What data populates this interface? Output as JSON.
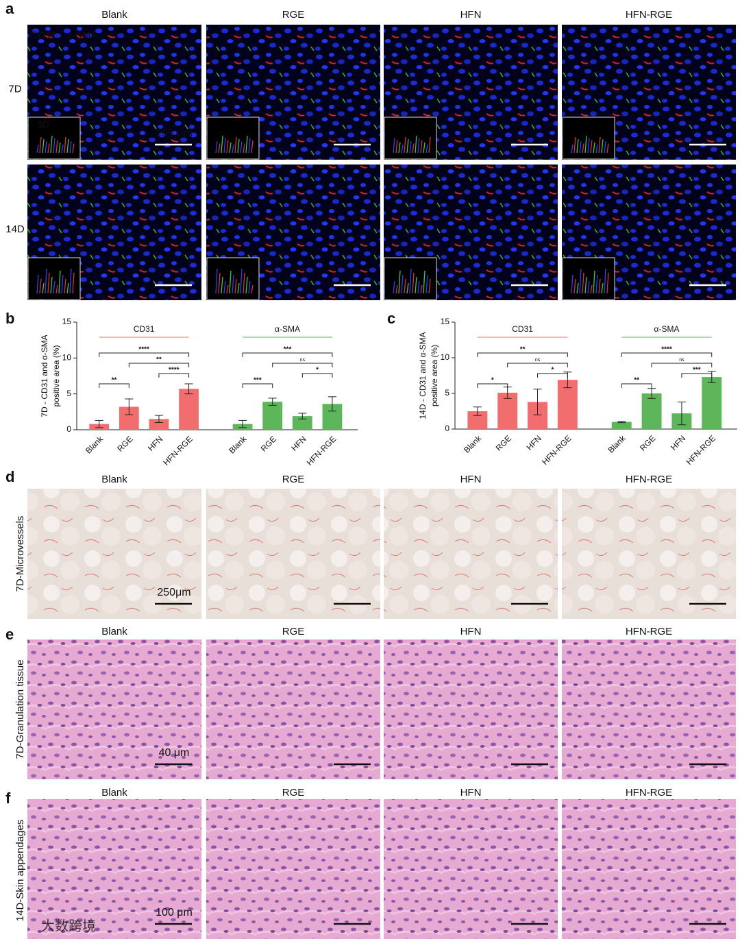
{
  "panels": {
    "a": {
      "label": "a",
      "columns": [
        "Blank",
        "RGE",
        "HFN",
        "HFN-RGE"
      ],
      "rows": [
        "7D",
        "14D"
      ],
      "legend": [
        "CD31",
        "α-SMA"
      ],
      "inset": "3D",
      "scale": "100 μm"
    },
    "d": {
      "label": "d",
      "columns": [
        "Blank",
        "RGE",
        "HFN",
        "HFN-RGE"
      ],
      "row": "7D-Microvessels",
      "scale": "250μm"
    },
    "e": {
      "label": "e",
      "columns": [
        "Blank",
        "RGE",
        "HFN",
        "HFN-RGE"
      ],
      "row": "7D-Granulation tissue",
      "scale": "40 μm"
    },
    "f": {
      "label": "f",
      "columns": [
        "Blank",
        "RGE",
        "HFN",
        "HFN-RGE"
      ],
      "row": "14D-Skin appendages",
      "scale": "100 μm"
    }
  },
  "watermark": "大数跨境",
  "chart_data": [
    {
      "type": "bar",
      "label": "b",
      "ylabel": [
        "7D - CD31 and α-SMA",
        "positive area (%)"
      ],
      "categories": [
        "Blank",
        "RGE",
        "HFN",
        "HFN-RGE"
      ],
      "ylim": [
        0,
        15
      ],
      "yticks": [
        0,
        5,
        10,
        15
      ],
      "series": [
        {
          "name": "CD31",
          "color": "#f26d6d",
          "values": [
            0.8,
            3.2,
            1.5,
            5.7
          ],
          "errors": [
            0.5,
            1.1,
            0.5,
            0.7
          ],
          "comparisons": [
            {
              "pair": [
                "Blank",
                "HFN-RGE"
              ],
              "label": "****"
            },
            {
              "pair": [
                "RGE",
                "HFN-RGE"
              ],
              "label": "**"
            },
            {
              "pair": [
                "HFN",
                "HFN-RGE"
              ],
              "label": "****"
            },
            {
              "pair": [
                "Blank",
                "RGE"
              ],
              "label": "**"
            }
          ]
        },
        {
          "name": "α-SMA",
          "color": "#5db65a",
          "values": [
            0.8,
            3.9,
            1.9,
            3.6
          ],
          "errors": [
            0.5,
            0.5,
            0.4,
            1.0
          ],
          "comparisons": [
            {
              "pair": [
                "Blank",
                "HFN-RGE"
              ],
              "label": "***"
            },
            {
              "pair": [
                "RGE",
                "HFN-RGE"
              ],
              "label": "ns"
            },
            {
              "pair": [
                "HFN",
                "HFN-RGE"
              ],
              "label": "*"
            },
            {
              "pair": [
                "Blank",
                "RGE"
              ],
              "label": "***"
            }
          ]
        }
      ]
    },
    {
      "type": "bar",
      "label": "c",
      "ylabel": [
        "14D - CD31 and α-SMA",
        "positive area (%)"
      ],
      "categories": [
        "Blank",
        "RGE",
        "HFN",
        "HFN-RGE"
      ],
      "ylim": [
        0,
        15
      ],
      "yticks": [
        0,
        5,
        10,
        15
      ],
      "series": [
        {
          "name": "CD31",
          "color": "#f26d6d",
          "values": [
            2.5,
            5.1,
            3.8,
            6.9
          ],
          "errors": [
            0.6,
            0.8,
            1.8,
            1.1
          ],
          "comparisons": [
            {
              "pair": [
                "Blank",
                "HFN-RGE"
              ],
              "label": "**"
            },
            {
              "pair": [
                "RGE",
                "HFN-RGE"
              ],
              "label": "ns"
            },
            {
              "pair": [
                "HFN",
                "HFN-RGE"
              ],
              "label": "*"
            },
            {
              "pair": [
                "Blank",
                "RGE"
              ],
              "label": "*"
            }
          ]
        },
        {
          "name": "α-SMA",
          "color": "#5db65a",
          "values": [
            1.0,
            5.0,
            2.2,
            7.3
          ],
          "errors": [
            0.1,
            0.7,
            1.6,
            0.8
          ],
          "comparisons": [
            {
              "pair": [
                "Blank",
                "HFN-RGE"
              ],
              "label": "****"
            },
            {
              "pair": [
                "RGE",
                "HFN-RGE"
              ],
              "label": "ns"
            },
            {
              "pair": [
                "HFN",
                "HFN-RGE"
              ],
              "label": "***"
            },
            {
              "pair": [
                "Blank",
                "RGE"
              ],
              "label": "**"
            }
          ]
        }
      ]
    }
  ]
}
